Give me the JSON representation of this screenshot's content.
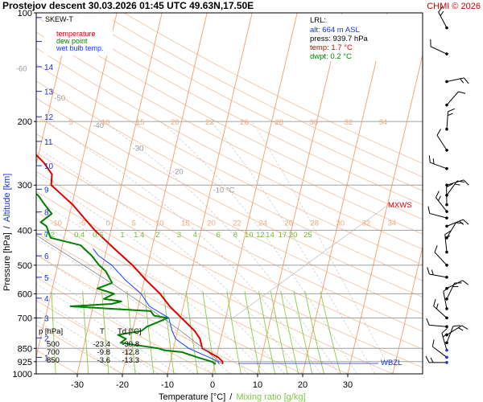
{
  "header": {
    "title": "Prostejov   descent   30.03.2026 01:45 UTC  49.63N,17.50E",
    "copyright": "CHMI © 2026"
  },
  "colors": {
    "temperature": "#e00000",
    "dew_point": "#008000",
    "wet_bulb": "#1040ff",
    "isotherm": "#f2a878",
    "isobar": "#a0a0a0",
    "mixing_ratio": "#8ccc40",
    "dry_adiabat": "#f0c0a0",
    "moist_adiabat": "#c8c8c8",
    "lrl_text": "#1a33cc"
  },
  "legend": {
    "skew_label": "SKEW-T",
    "temperature": "temperature",
    "dew_point": "dew point",
    "wet_bulb": "wet bulb temp."
  },
  "lrl": {
    "label": "LRL:",
    "alt": "alt: 664 m ASL",
    "press": "press: 939.7 hPa",
    "temp": "temp: 1.7 °C",
    "dwpt": "dwpt: 0.2 °C"
  },
  "markers": {
    "mxws": "MXWS",
    "wbzl": "WBZL"
  },
  "table": {
    "header": [
      "p [hPa]",
      "T",
      "Td [°C]"
    ],
    "rows": [
      [
        "500",
        "-23.4",
        "-30.8"
      ],
      [
        "700",
        "-9.8",
        "-12.8"
      ],
      [
        "850",
        "-3.6",
        "-13.3"
      ]
    ]
  },
  "axes": {
    "xlabel": "Temperature [°C]",
    "xlabel_sep": "/",
    "xlabel2": "Mixing ratio [g/kg]",
    "ylabel": "Pressure [hPa]",
    "ylabel_sep": "/",
    "ylabel2": "Altitude [km]"
  },
  "chart_data": {
    "type": "line",
    "diagram": "skew-t log-p",
    "xlim": [
      -35,
      50
    ],
    "ylim": [
      1000,
      100
    ],
    "y_scale": "log",
    "pressure_ticks": [
      "100",
      "200",
      "300",
      "400",
      "500",
      "600",
      "700",
      "850",
      "925",
      "1000"
    ],
    "altitude_ticks": [
      {
        "km": "1",
        "p": 900
      },
      {
        "km": "2",
        "p": 795
      },
      {
        "km": "3",
        "p": 700
      },
      {
        "km": "4",
        "p": 617
      },
      {
        "km": "5",
        "p": 540
      },
      {
        "km": "6",
        "p": 471
      },
      {
        "km": "7",
        "p": 410
      },
      {
        "km": "8",
        "p": 356
      },
      {
        "km": "9",
        "p": 308
      },
      {
        "km": "10",
        "p": 265
      },
      {
        "km": "11",
        "p": 227
      },
      {
        "km": "12",
        "p": 194
      },
      {
        "km": "13",
        "p": 165
      },
      {
        "km": "14",
        "p": 141
      },
      {
        "km": "15",
        "p": 120
      },
      {
        "km": "16",
        "p": 103
      }
    ],
    "temperature_ticks": [
      "-30",
      "-20",
      "-10",
      "0",
      "10",
      "20",
      "30"
    ],
    "isotherm_labels": [
      {
        "t": -80,
        "p": 110,
        "label": "-80 °C"
      },
      {
        "t": -70,
        "p": 125,
        "label": "-70"
      },
      {
        "t": -60,
        "p": 143,
        "label": "-60"
      },
      {
        "t": -50,
        "p": 172,
        "label": "-50"
      },
      {
        "t": -40,
        "p": 205,
        "label": "-40"
      },
      {
        "t": -30,
        "p": 237,
        "label": "-30"
      },
      {
        "t": -20,
        "p": 275,
        "label": "-20"
      },
      {
        "t": -10,
        "p": 310,
        "label": "-10 °C"
      }
    ],
    "mixing_ratio_labels": [
      "0.2",
      "0.4",
      "0.6",
      "1",
      "1.4",
      "2",
      "3",
      "4",
      "6",
      "8",
      "10",
      "12",
      "14",
      "17",
      "20",
      "25"
    ],
    "mixing_ratio_values": [
      0.2,
      0.4,
      0.6,
      1,
      1.4,
      2,
      3,
      4,
      6,
      8,
      10,
      12,
      14,
      17,
      20,
      25
    ],
    "theta_labels_200": [
      "5",
      "10",
      "15",
      "20",
      "22",
      "26",
      "28",
      "30",
      "32",
      "34"
    ],
    "theta_labels_400": [
      "-10",
      "-5",
      "0",
      "5",
      "10",
      "15",
      "20",
      "22",
      "24",
      "26",
      "28",
      "30",
      "32",
      "34"
    ],
    "series": [
      {
        "name": "temperature",
        "points": [
          [
            939.7,
            1.7
          ],
          [
            925,
            1.6
          ],
          [
            900,
            0.4
          ],
          [
            850,
            -3.6
          ],
          [
            800,
            -4.6
          ],
          [
            760,
            -6.2
          ],
          [
            700,
            -9.8
          ],
          [
            650,
            -13.0
          ],
          [
            600,
            -15.8
          ],
          [
            550,
            -19.6
          ],
          [
            500,
            -23.4
          ],
          [
            450,
            -28.3
          ],
          [
            400,
            -33.6
          ],
          [
            370,
            -36.6
          ],
          [
            340,
            -39.8
          ],
          [
            320,
            -42.6
          ],
          [
            300,
            -45.6
          ],
          [
            280,
            -46.0
          ],
          [
            260,
            -48.4
          ],
          [
            240,
            -51.8
          ],
          [
            220,
            -54.2
          ],
          [
            200,
            -56.8
          ],
          [
            185,
            -58.0
          ],
          [
            175,
            -58.8
          ],
          [
            160,
            -60.6
          ],
          [
            150,
            -61.2
          ],
          [
            140,
            -62.4
          ],
          [
            130,
            -63.6
          ],
          [
            120,
            -64.8
          ],
          [
            110,
            -66.4
          ],
          [
            105,
            -67.4
          ]
        ]
      },
      {
        "name": "dew point",
        "points": [
          [
            939.7,
            0.2
          ],
          [
            925,
            -0.8
          ],
          [
            900,
            -4.2
          ],
          [
            870,
            -8.0
          ],
          [
            860,
            -12.0
          ],
          [
            850,
            -13.3
          ],
          [
            820,
            -22.0
          ],
          [
            800,
            -21.0
          ],
          [
            780,
            -23.0
          ],
          [
            760,
            -18.0
          ],
          [
            740,
            -17.0
          ],
          [
            700,
            -12.8
          ],
          [
            690,
            -16.0
          ],
          [
            670,
            -17.0
          ],
          [
            650,
            -35.0
          ],
          [
            640,
            -26.0
          ],
          [
            630,
            -24.0
          ],
          [
            620,
            -28.0
          ],
          [
            600,
            -26.0
          ],
          [
            580,
            -30.0
          ],
          [
            560,
            -27.0
          ],
          [
            520,
            -29.0
          ],
          [
            500,
            -30.8
          ],
          [
            470,
            -33.0
          ],
          [
            440,
            -36.0
          ],
          [
            420,
            -43.0
          ],
          [
            400,
            -44.0
          ],
          [
            390,
            -44.5
          ],
          [
            380,
            -46.0
          ],
          [
            360,
            -44.0
          ],
          [
            340,
            -46.0
          ],
          [
            320,
            -48.0
          ],
          [
            300,
            -52.0
          ],
          [
            280,
            -56.0
          ],
          [
            260,
            -60.0
          ],
          [
            240,
            -66.0
          ],
          [
            220,
            -70.0
          ],
          [
            210,
            -73.0
          ],
          [
            195,
            -74.0
          ],
          [
            180,
            -76.0
          ],
          [
            165,
            -78.0
          ],
          [
            150,
            -80.0
          ],
          [
            135,
            -83.0
          ],
          [
            120,
            -86.0
          ],
          [
            110,
            -88.0
          ],
          [
            103,
            -90.0
          ]
        ]
      },
      {
        "name": "wet bulb temp.",
        "points": [
          [
            939.7,
            1.0
          ],
          [
            925,
            0.6
          ],
          [
            900,
            -1.6
          ],
          [
            850,
            -6.6
          ],
          [
            800,
            -10.0
          ],
          [
            760,
            -11.2
          ],
          [
            700,
            -12.6
          ],
          [
            650,
            -17.5
          ],
          [
            600,
            -20.0
          ],
          [
            550,
            -24.2
          ],
          [
            500,
            -28.0
          ],
          [
            470,
            -31.5
          ],
          [
            450,
            -33.0
          ]
        ]
      }
    ],
    "wind_barbs": [
      {
        "p": 930
      },
      {
        "p": 900
      },
      {
        "p": 860
      },
      {
        "p": 820
      },
      {
        "p": 780
      },
      {
        "p": 740
      },
      {
        "p": 700
      },
      {
        "p": 660
      },
      {
        "p": 620
      },
      {
        "p": 580
      },
      {
        "p": 540
      },
      {
        "p": 500
      },
      {
        "p": 460
      },
      {
        "p": 420
      },
      {
        "p": 390
      },
      {
        "p": 370
      },
      {
        "p": 355
      },
      {
        "p": 340
      },
      {
        "p": 320
      },
      {
        "p": 300
      },
      {
        "p": 270
      },
      {
        "p": 240
      },
      {
        "p": 210
      },
      {
        "p": 180
      },
      {
        "p": 155
      },
      {
        "p": 130
      },
      {
        "p": 110
      }
    ]
  }
}
